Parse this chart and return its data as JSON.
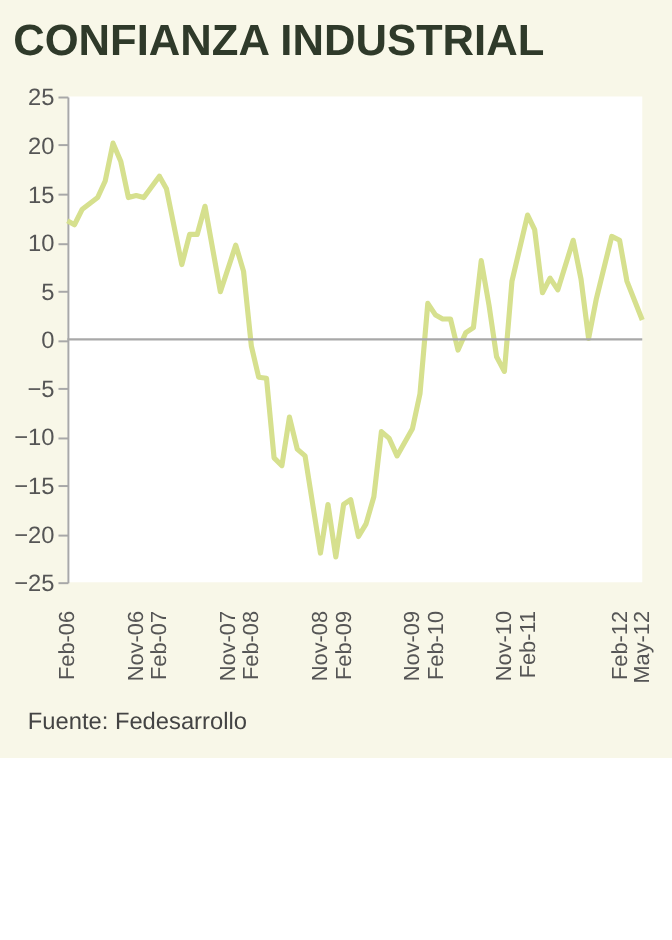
{
  "chart_data": {
    "type": "line",
    "title": "CONFIANZA INDUSTRIAL",
    "x": [
      "2006-02",
      "2006-03",
      "2006-04",
      "2006-06",
      "2006-07",
      "2006-08",
      "2006-09",
      "2006-10",
      "2006-11",
      "2006-12",
      "2007-02",
      "2007-03",
      "2007-05",
      "2007-06",
      "2007-07",
      "2007-08",
      "2007-10",
      "2007-12",
      "2008-01",
      "2008-02",
      "2008-03",
      "2008-04",
      "2008-05",
      "2008-06",
      "2008-07",
      "2008-08",
      "2008-09",
      "2008-11",
      "2008-12",
      "2009-01",
      "2009-02",
      "2009-03",
      "2009-04",
      "2009-05",
      "2009-06",
      "2009-07",
      "2009-08",
      "2009-09",
      "2009-11",
      "2009-12",
      "2010-01",
      "2010-02",
      "2010-03",
      "2010-04",
      "2010-05",
      "2010-06",
      "2010-07",
      "2010-08",
      "2010-09",
      "2010-10",
      "2010-11",
      "2010-12",
      "2011-02",
      "2011-03",
      "2011-04",
      "2011-05",
      "2011-06",
      "2011-08",
      "2011-09",
      "2011-10",
      "2011-11",
      "2012-01",
      "2012-02",
      "2012-03",
      "2012-05"
    ],
    "series": [
      {
        "color": "#d6e08e",
        "values": [
          12.2,
          11.8,
          13.4,
          14.6,
          16.3,
          20.2,
          18.3,
          14.6,
          14.8,
          14.6,
          16.8,
          15.5,
          7.7,
          10.8,
          10.8,
          13.7,
          4.9,
          9.7,
          7.0,
          -0.7,
          -3.9,
          -4.0,
          -12.2,
          -13.0,
          -8.0,
          -11.3,
          -12.0,
          -22.0,
          -17.0,
          -22.4,
          -17.0,
          -16.5,
          -20.3,
          -19.0,
          -16.2,
          -9.5,
          -10.2,
          -12.0,
          -9.2,
          -5.6,
          3.7,
          2.5,
          2.1,
          2.1,
          -1.1,
          0.7,
          1.2,
          8.1,
          3.5,
          -1.8,
          -3.3,
          6.0,
          12.8,
          11.3,
          4.8,
          6.3,
          5.1,
          10.2,
          6.2,
          0.1,
          4.2,
          10.6,
          10.2,
          6.0,
          2.0
        ]
      }
    ],
    "xlim": [
      "2006-02",
      "2012-05"
    ],
    "xticks": [
      {
        "value": "2006-02",
        "label": "Feb-06"
      },
      {
        "value": "2006-11",
        "label": "Nov-06"
      },
      {
        "value": "2007-02",
        "label": "Feb-07"
      },
      {
        "value": "2007-11",
        "label": "Nov-07"
      },
      {
        "value": "2008-02",
        "label": "Feb-08"
      },
      {
        "value": "2008-11",
        "label": "Nov-08"
      },
      {
        "value": "2009-02",
        "label": "Feb-09"
      },
      {
        "value": "2009-11",
        "label": "Nov-09"
      },
      {
        "value": "2010-02",
        "label": "Feb-10"
      },
      {
        "value": "2010-11",
        "label": "Nov-10"
      },
      {
        "value": "2011-02",
        "label": "Feb-11"
      },
      {
        "value": "2012-02",
        "label": "Feb-12"
      },
      {
        "value": "2012-05",
        "label": "May-12"
      }
    ],
    "ylim": [
      -25,
      25
    ],
    "yticks": [
      -25,
      -20,
      -15,
      -10,
      -5,
      0,
      5,
      10,
      15,
      20,
      25
    ],
    "ref_lines": [
      {
        "axis": "y",
        "value": 0,
        "color": "#a8a8a8"
      }
    ],
    "grid": false,
    "legend": false,
    "marker": "none",
    "line_style": "solid",
    "annotations": [
      "Fuente: Fedesarrollo"
    ]
  }
}
